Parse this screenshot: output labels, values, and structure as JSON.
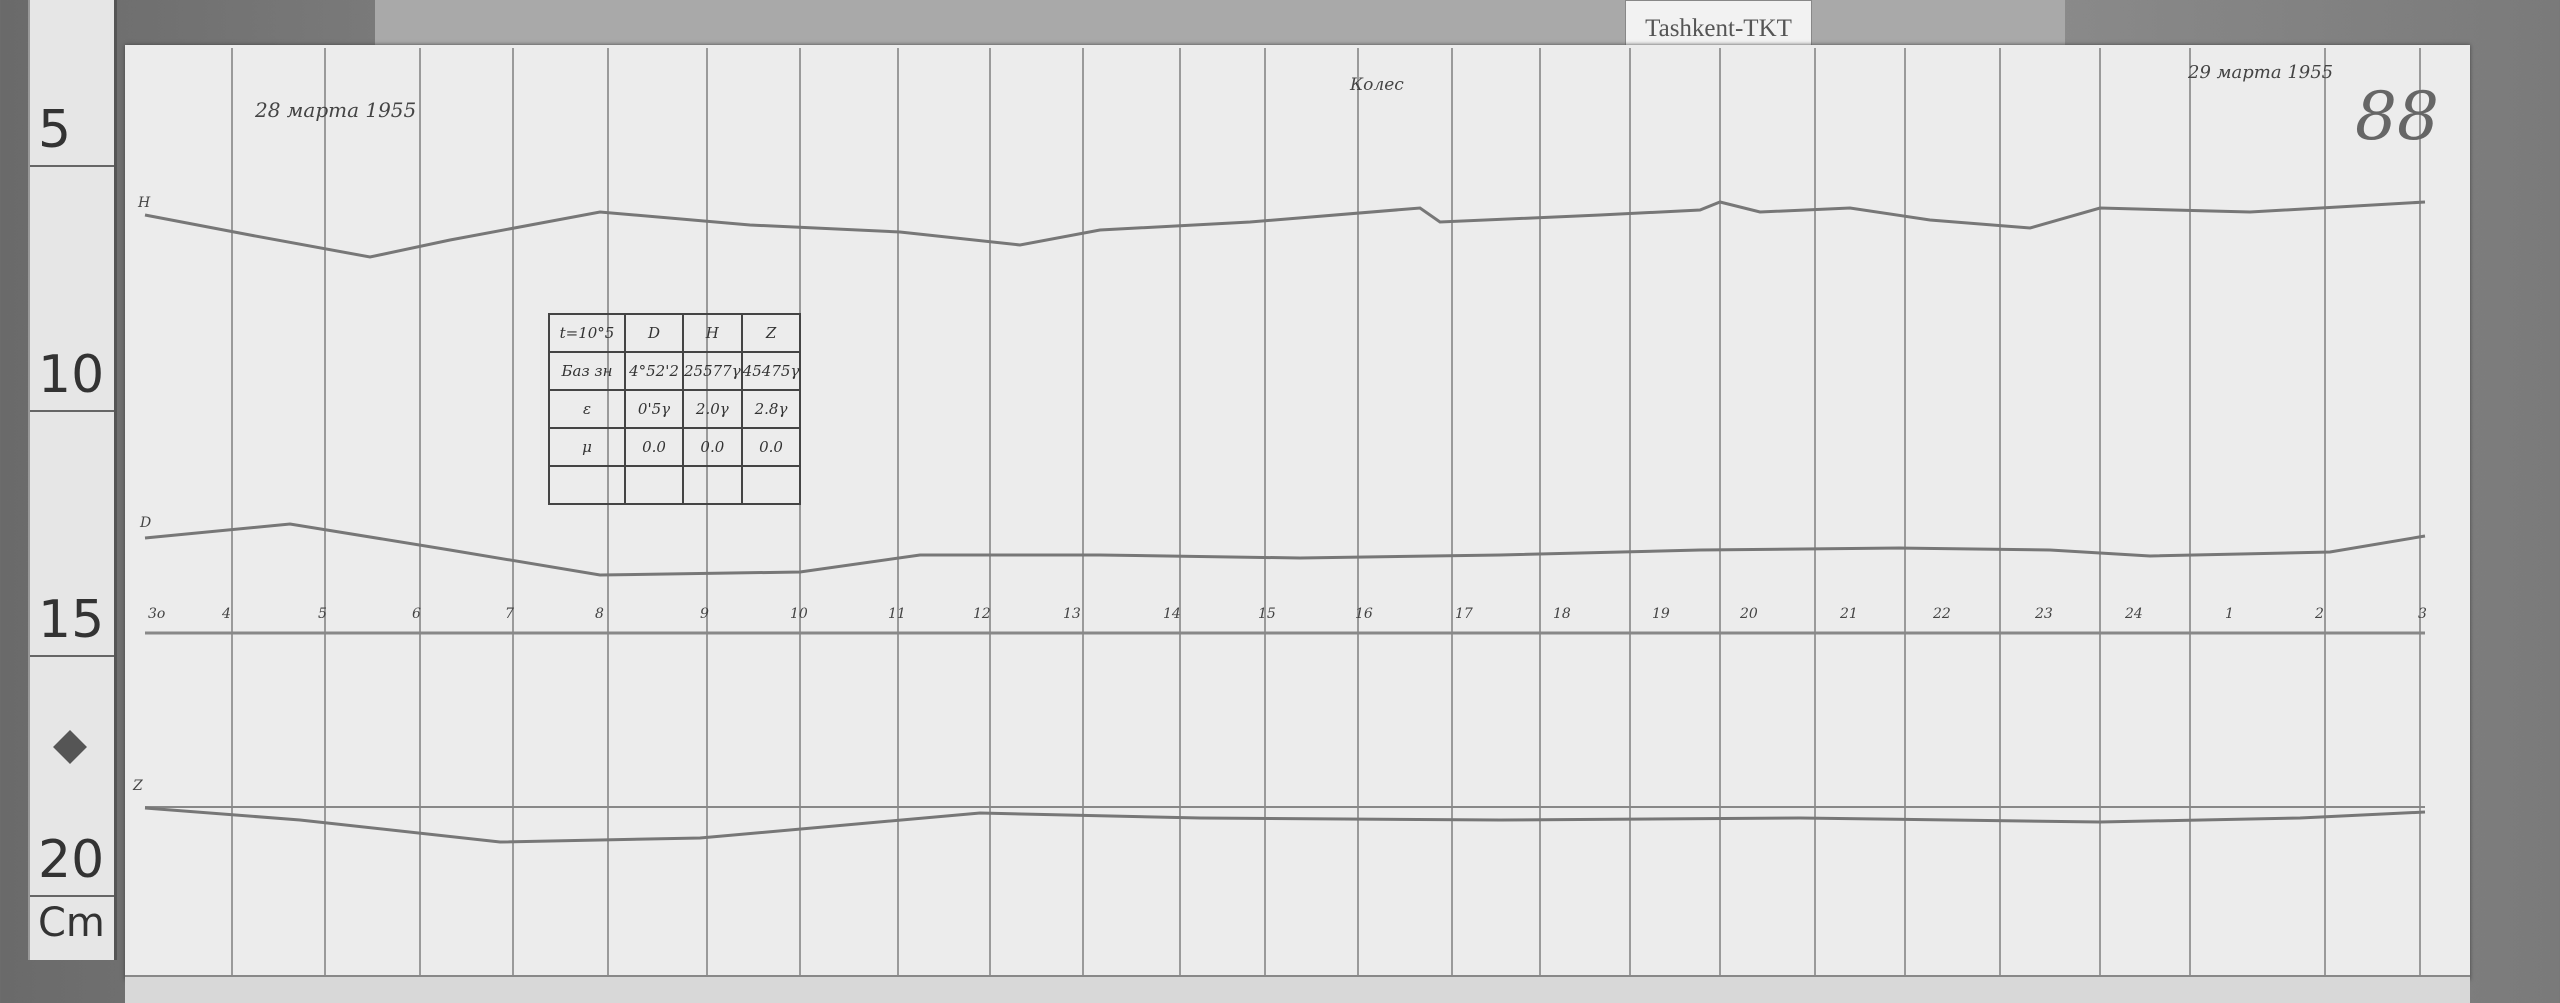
{
  "ruler": {
    "labels": [
      "5",
      "10",
      "15",
      "20"
    ],
    "unit": "Cm"
  },
  "station_label": "Tashkent-TKT",
  "sheet": {
    "date_start": "28 марта 1955",
    "date_end": "29 марта 1955",
    "header_note": "Колес",
    "sheet_number": "88",
    "trace_labels": {
      "h": "H",
      "d": "D",
      "z": "Z"
    },
    "baseline_label": "3o",
    "hours": [
      "4",
      "5",
      "6",
      "7",
      "8",
      "9",
      "10",
      "11",
      "12",
      "13",
      "14",
      "15",
      "16",
      "17",
      "18",
      "19",
      "20",
      "21",
      "22",
      "23",
      "24",
      "1",
      "2",
      "3"
    ]
  },
  "baseline_table": {
    "header": [
      "t=10°5",
      "D",
      "H",
      "Z"
    ],
    "rows": [
      [
        "Баз зн",
        "4°52'2",
        "25577γ",
        "45475γ"
      ],
      [
        "ε",
        "0'5γ",
        "2.0γ",
        "2.8γ"
      ],
      [
        "μ",
        "0.0",
        "0.0",
        "0.0"
      ],
      [
        "",
        "",
        "",
        ""
      ]
    ]
  }
}
